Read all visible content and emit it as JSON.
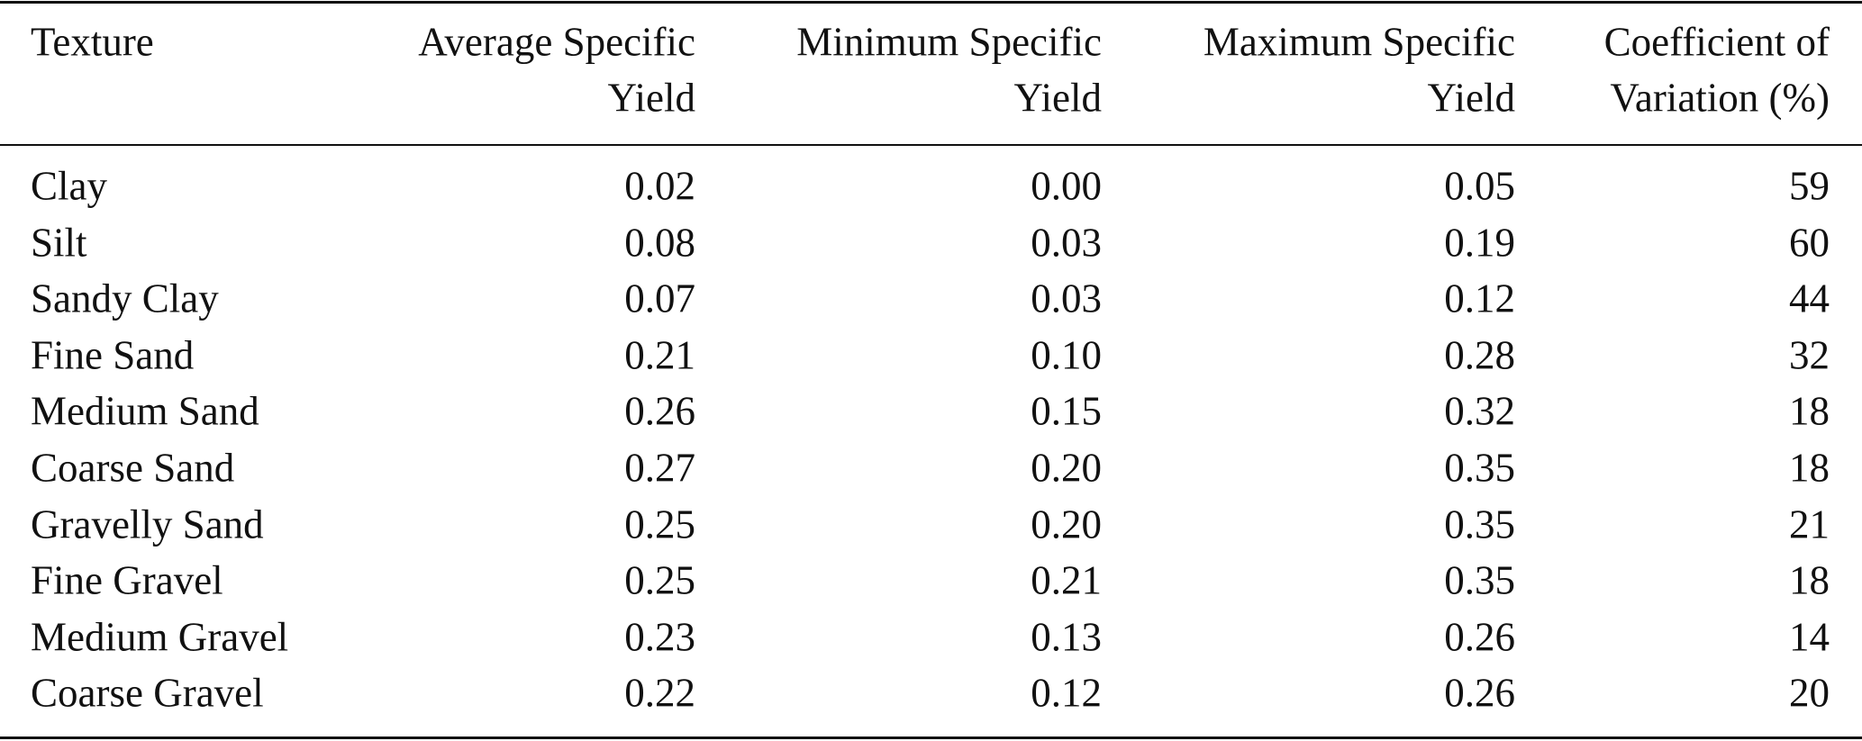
{
  "table": {
    "header": [
      [
        "Texture"
      ],
      [
        "Average Specific",
        "Yield"
      ],
      [
        "Minimum Specific",
        "Yield"
      ],
      [
        "Maximum Specific",
        "Yield"
      ],
      [
        "Coefficient of",
        "Variation (%)"
      ]
    ],
    "rows": [
      [
        "Clay",
        "0.02",
        "0.00",
        "0.05",
        "59"
      ],
      [
        "Silt",
        "0.08",
        "0.03",
        "0.19",
        "60"
      ],
      [
        "Sandy Clay",
        "0.07",
        "0.03",
        "0.12",
        "44"
      ],
      [
        "Fine Sand",
        "0.21",
        "0.10",
        "0.28",
        "32"
      ],
      [
        "Medium Sand",
        "0.26",
        "0.15",
        "0.32",
        "18"
      ],
      [
        "Coarse Sand",
        "0.27",
        "0.20",
        "0.35",
        "18"
      ],
      [
        "Gravelly Sand",
        "0.25",
        "0.20",
        "0.35",
        "21"
      ],
      [
        "Fine Gravel",
        "0.25",
        "0.21",
        "0.35",
        "18"
      ],
      [
        "Medium Gravel",
        "0.23",
        "0.13",
        "0.26",
        "14"
      ],
      [
        "Coarse Gravel",
        "0.22",
        "0.12",
        "0.26",
        "20"
      ]
    ]
  }
}
